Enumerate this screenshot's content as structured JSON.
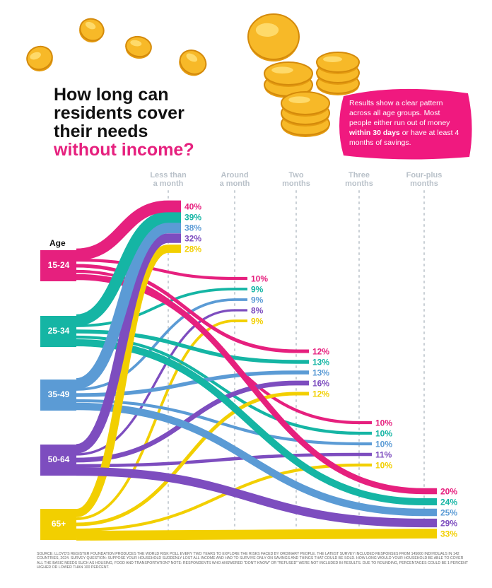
{
  "title": {
    "line1": "How long can",
    "line2": "residents cover",
    "line3": "their needs",
    "line4": "without income?"
  },
  "callout": {
    "text_before": "Results show a clear pattern across all age groups. Most people either run out of money ",
    "text_bold": "within 30 days",
    "text_after": " or have at least 4 months of savings."
  },
  "age_title": "Age",
  "source_text": "Source: Lloyd's Register Foundation produces the World Risk Poll every two years to explore the risks faced by ordinary people. The latest survey included responses from 145000 individuals in 142 countries, 2024. Survey question: Suppose your household suddenly lost all income and had to survive only on savings and things that could be sold. How long would your household be able to cover all the basic needs such as housing, food and transportation? Note: Respondents who answered \"Don't know\" or \"Refused\" were not included in results. Due to rounding, percentages could be 1 percent higher or lower than 100 percent.",
  "colors": {
    "age_15_24": "#e6207e",
    "age_25_34": "#15b5a4",
    "age_35_49": "#5b9bd5",
    "age_50_64": "#7d4dbf",
    "age_65_plus": "#f2cf00",
    "callout_bg": "#f0197f",
    "title_accent": "#e6207e",
    "gridline": "#c9cfd5"
  },
  "chart_data": {
    "type": "sankey",
    "title": "How long can residents cover their needs without income?",
    "sources": [
      "15-24",
      "25-34",
      "35-49",
      "50-64",
      "65+"
    ],
    "targets": [
      "Less than a month",
      "Around a month",
      "Two months",
      "Three months",
      "Four-plus months"
    ],
    "target_labels": [
      [
        "Less than",
        "a month"
      ],
      [
        "Around",
        "a month"
      ],
      [
        "Two",
        "months"
      ],
      [
        "Three",
        "months"
      ],
      [
        "Four-plus",
        "months"
      ]
    ],
    "series": [
      {
        "name": "15-24",
        "values": [
          40,
          10,
          12,
          10,
          20
        ]
      },
      {
        "name": "25-34",
        "values": [
          39,
          9,
          13,
          10,
          24
        ]
      },
      {
        "name": "35-49",
        "values": [
          38,
          9,
          13,
          10,
          25
        ]
      },
      {
        "name": "50-64",
        "values": [
          32,
          8,
          16,
          11,
          29
        ]
      },
      {
        "name": "65+",
        "values": [
          28,
          9,
          12,
          10,
          33
        ]
      }
    ],
    "unit": "%",
    "grid": true
  }
}
